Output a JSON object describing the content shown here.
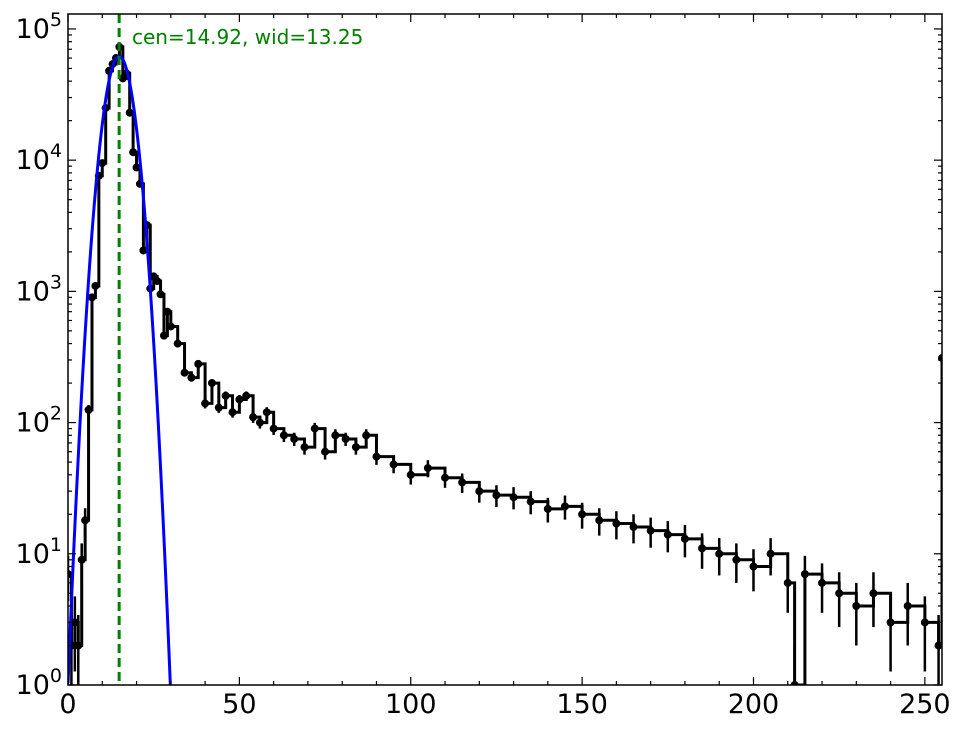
{
  "chart_data": {
    "type": "line",
    "title": "",
    "xlabel": "",
    "ylabel": "",
    "xlim": [
      0,
      255
    ],
    "ylim": [
      1,
      130000
    ],
    "y_scale": "log",
    "grid": false,
    "legend": "none",
    "x_ticks": [
      {
        "value": 0,
        "label": "0"
      },
      {
        "value": 50,
        "label": "50"
      },
      {
        "value": 100,
        "label": "100"
      },
      {
        "value": 150,
        "label": "150"
      },
      {
        "value": 200,
        "label": "200"
      },
      {
        "value": 250,
        "label": "250"
      }
    ],
    "y_ticks": [
      {
        "value": 1,
        "base": "10",
        "exp": "0"
      },
      {
        "value": 10,
        "base": "10",
        "exp": "1"
      },
      {
        "value": 100,
        "base": "10",
        "exp": "2"
      },
      {
        "value": 1000,
        "base": "10",
        "exp": "3"
      },
      {
        "value": 10000,
        "base": "10",
        "exp": "4"
      },
      {
        "value": 100000,
        "base": "10",
        "exp": "5"
      }
    ],
    "annotation": {
      "text": "cen=14.92, wid=13.25",
      "color": "#008000"
    },
    "vline": {
      "x": 14.92,
      "color": "#008000",
      "style": "dashed"
    },
    "series": [
      {
        "style": "black-steps-with-errorbars",
        "color": "#000000",
        "x": [
          0,
          1,
          2,
          3,
          4,
          5,
          6,
          7,
          8,
          9,
          10,
          11,
          12,
          13,
          14,
          15,
          16,
          17,
          18,
          19,
          20,
          21,
          22,
          23,
          24,
          25,
          26,
          27,
          28,
          29,
          30,
          32,
          34,
          36,
          38,
          40,
          42,
          44,
          46,
          48,
          50,
          52,
          54,
          56,
          58,
          60,
          63,
          66,
          69,
          72,
          75,
          78,
          81,
          84,
          87,
          90,
          95,
          100,
          105,
          110,
          115,
          120,
          125,
          130,
          135,
          140,
          145,
          150,
          155,
          160,
          165,
          170,
          175,
          180,
          185,
          190,
          195,
          200,
          205,
          210,
          212,
          215,
          220,
          225,
          230,
          235,
          240,
          245,
          250,
          254,
          255
        ],
        "y": [
          7,
          2,
          3,
          2,
          9,
          18,
          125,
          900,
          1100,
          7600,
          9500,
          25000,
          48000,
          54000,
          60000,
          73000,
          42000,
          46000,
          23000,
          11500,
          8800,
          6600,
          2050,
          3200,
          1050,
          1300,
          1200,
          950,
          460,
          700,
          540,
          400,
          240,
          220,
          280,
          140,
          200,
          130,
          160,
          120,
          150,
          160,
          110,
          100,
          120,
          90,
          80,
          75,
          65,
          90,
          60,
          80,
          75,
          65,
          80,
          55,
          48,
          40,
          45,
          38,
          35,
          30,
          28,
          27,
          25,
          22,
          23,
          20,
          18,
          17,
          16,
          15,
          14,
          13,
          11,
          10,
          9,
          8,
          10,
          6,
          1,
          7,
          6,
          5,
          4,
          5,
          3,
          4,
          3,
          2,
          310
        ]
      },
      {
        "style": "gaussian-fit",
        "color": "#0000ff",
        "center": 14.92,
        "sigma": 3.18,
        "peak": 62000
      }
    ]
  }
}
